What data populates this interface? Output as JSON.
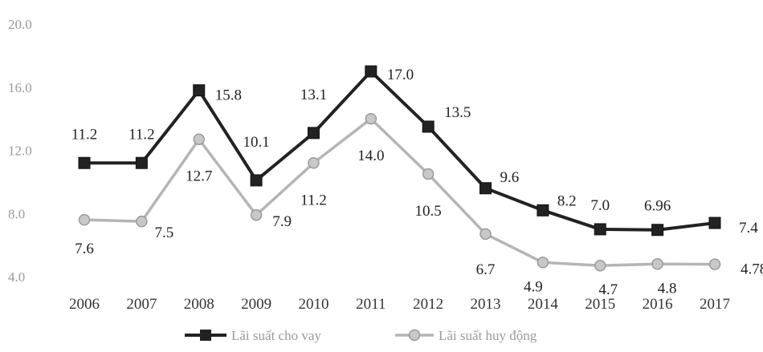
{
  "chart_data": {
    "type": "line",
    "x": [
      "2006",
      "2007",
      "2008",
      "2009",
      "2010",
      "2011",
      "2012",
      "2013",
      "2014",
      "2015",
      "2016",
      "2017"
    ],
    "ylim": [
      4.0,
      20.0
    ],
    "yticks": [
      "4.0",
      "8.0",
      "12.0",
      "16.0",
      "20.0"
    ],
    "grid": false,
    "legend_position": "bottom",
    "series": [
      {
        "name": "Lãi suất cho vay",
        "color": "#222222",
        "marker": "square",
        "values": [
          11.2,
          11.2,
          15.8,
          10.1,
          13.1,
          17.0,
          13.5,
          9.6,
          8.2,
          7.0,
          6.96,
          7.4
        ],
        "labels": [
          "11.2",
          "11.2",
          "15.8",
          "10.1",
          "13.1",
          "17.0",
          "13.5",
          "9.6",
          "8.2",
          "7.0",
          "6.96",
          "7.4"
        ]
      },
      {
        "name": "Lãi suất huy động",
        "color": "#b5b5b5",
        "marker": "circle",
        "values": [
          7.6,
          7.5,
          12.7,
          7.9,
          11.2,
          14.0,
          10.5,
          6.7,
          4.9,
          4.7,
          4.8,
          4.78
        ],
        "labels": [
          "7.6",
          "7.5",
          "12.7",
          "7.9",
          "11.2",
          "14.0",
          "10.5",
          "6.7",
          "4.9",
          "4.7",
          "4.8",
          "4.78"
        ]
      }
    ]
  }
}
